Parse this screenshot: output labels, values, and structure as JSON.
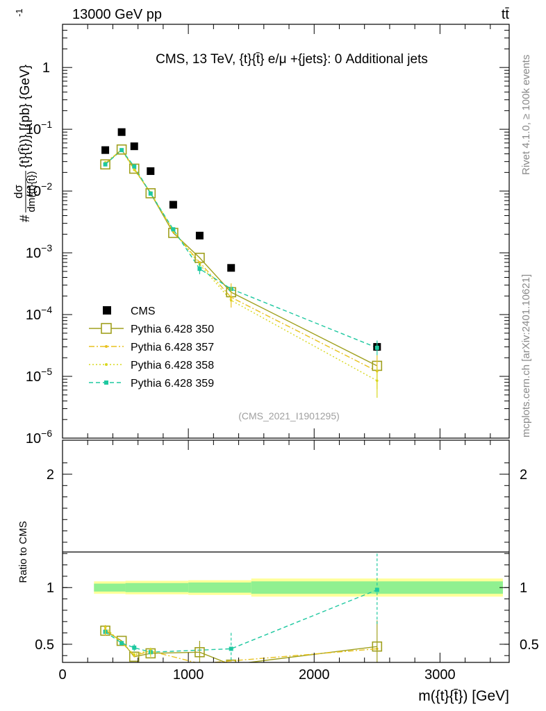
{
  "header": {
    "energy_label": "13000 GeV pp",
    "process_label": "tt̄"
  },
  "side_labels": {
    "rivet": "Rivet 4.1.0, ≥ 100k events",
    "mcplots": "mcplots.cern.ch [arXiv:2401.10621]"
  },
  "chart_data": [
    {
      "type": "scatter",
      "title": "CMS, 13 TeV, {t}{t̄} e/μ +{jets}: 0 Additional jets",
      "watermark": "(CMS_2021_I1901295)",
      "xlabel": "m({t}{t̄}) [GeV]",
      "ylabel_num": "dσ",
      "ylabel_den": "dm({t}{t̄})",
      "ylabel_prefix": "#",
      "ylabel_units": "{t}{t̄})} [{pb} {GeV}",
      "ylabel_exp": "-1",
      "yscale": "log",
      "xlim": [
        0,
        3550
      ],
      "ylim": [
        1e-06,
        5
      ],
      "yticks": [
        {
          "v": 1e-06,
          "label": "10",
          "exp": "−6"
        },
        {
          "v": 1e-05,
          "label": "10",
          "exp": "−5"
        },
        {
          "v": 0.0001,
          "label": "10",
          "exp": "−4"
        },
        {
          "v": 0.001,
          "label": "10",
          "exp": "−3"
        },
        {
          "v": 0.01,
          "label": "10",
          "exp": "−2"
        },
        {
          "v": 0.1,
          "label": "10",
          "exp": "−1"
        },
        {
          "v": 1,
          "label": "1",
          "exp": ""
        }
      ],
      "legend_position": "bottom-left",
      "series": [
        {
          "name": "CMS",
          "color": "#000000",
          "style": "data",
          "x": [
            340,
            470,
            570,
            700,
            880,
            1090,
            1340,
            2500
          ],
          "y": [
            0.046,
            0.09,
            0.053,
            0.021,
            0.006,
            0.0019,
            0.00057,
            3e-05
          ]
        },
        {
          "name": "Pythia 6.428 350",
          "color": "#a0a01e",
          "style": "solid-open-square",
          "x": [
            340,
            470,
            570,
            700,
            880,
            1090,
            1340,
            2500
          ],
          "y": [
            0.027,
            0.047,
            0.023,
            0.0092,
            0.0021,
            0.00083,
            0.00023,
            1.48e-05
          ]
        },
        {
          "name": "Pythia 6.428 357",
          "color": "#e8c21e",
          "style": "dashdot",
          "x": [
            340,
            470,
            570,
            700,
            880,
            1090,
            1340,
            2500
          ],
          "y": [
            0.028,
            0.047,
            0.023,
            0.0094,
            0.0022,
            0.0007,
            0.00019,
            1.21e-05
          ]
        },
        {
          "name": "Pythia 6.428 358",
          "color": "#d8d81e",
          "style": "dotted",
          "x": [
            340,
            470,
            570,
            700,
            880,
            1090,
            1340,
            2500
          ],
          "y": [
            0.029,
            0.046,
            0.022,
            0.0095,
            0.0023,
            0.00065,
            0.00017,
            8.5e-06
          ]
        },
        {
          "name": "Pythia 6.428 359",
          "color": "#1ec8a0",
          "style": "dashed-square",
          "x": [
            340,
            470,
            570,
            700,
            880,
            1090,
            1340,
            2500
          ],
          "y": [
            0.027,
            0.046,
            0.025,
            0.0091,
            0.0024,
            0.00055,
            0.00026,
            2.9e-05
          ]
        }
      ]
    },
    {
      "type": "line",
      "title": "",
      "ylabel": "Ratio to CMS",
      "xlabel": "m({t}{t̄}) [GeV]",
      "xlim": [
        0,
        3550
      ],
      "ylim": [
        0.34,
        2.3
      ],
      "xticks": [
        0,
        1000,
        2000,
        3000
      ],
      "yticks": [
        0.5,
        1,
        2
      ],
      "ytick_labels": [
        "0.5",
        "1",
        "2"
      ],
      "xtick_labels": [
        "0",
        "1000",
        "2000",
        "3000"
      ],
      "bands": {
        "edges": [
          250,
          500,
          1000,
          1500,
          3500
        ],
        "outer": [
          [
            0.945,
            1.055
          ],
          [
            0.94,
            1.06
          ],
          [
            0.935,
            1.065
          ],
          [
            0.92,
            1.08
          ]
        ],
        "inner": [
          [
            0.965,
            1.035
          ],
          [
            0.96,
            1.04
          ],
          [
            0.955,
            1.045
          ],
          [
            0.945,
            1.055
          ]
        ]
      },
      "series": [
        {
          "name": "Pythia 6.428 350",
          "x": [
            340,
            470,
            570,
            700,
            1090,
            1340,
            2500
          ],
          "y": [
            0.62,
            0.53,
            0.39,
            0.42,
            0.43,
            0.32,
            0.48
          ]
        },
        {
          "name": "Pythia 6.428 357",
          "x": [
            340,
            470,
            570,
            700,
            1090,
            2500
          ],
          "y": [
            0.63,
            0.52,
            0.4,
            0.44,
            0.33,
            0.46
          ]
        },
        {
          "name": "Pythia 6.428 358",
          "x": [
            340,
            470,
            570,
            700
          ],
          "y": [
            0.65,
            0.51,
            0.41,
            0.45
          ]
        },
        {
          "name": "Pythia 6.428 359",
          "x": [
            340,
            470,
            570,
            700,
            1340,
            2500
          ],
          "y": [
            0.61,
            0.51,
            0.47,
            0.43,
            0.46,
            0.98
          ]
        }
      ]
    }
  ]
}
